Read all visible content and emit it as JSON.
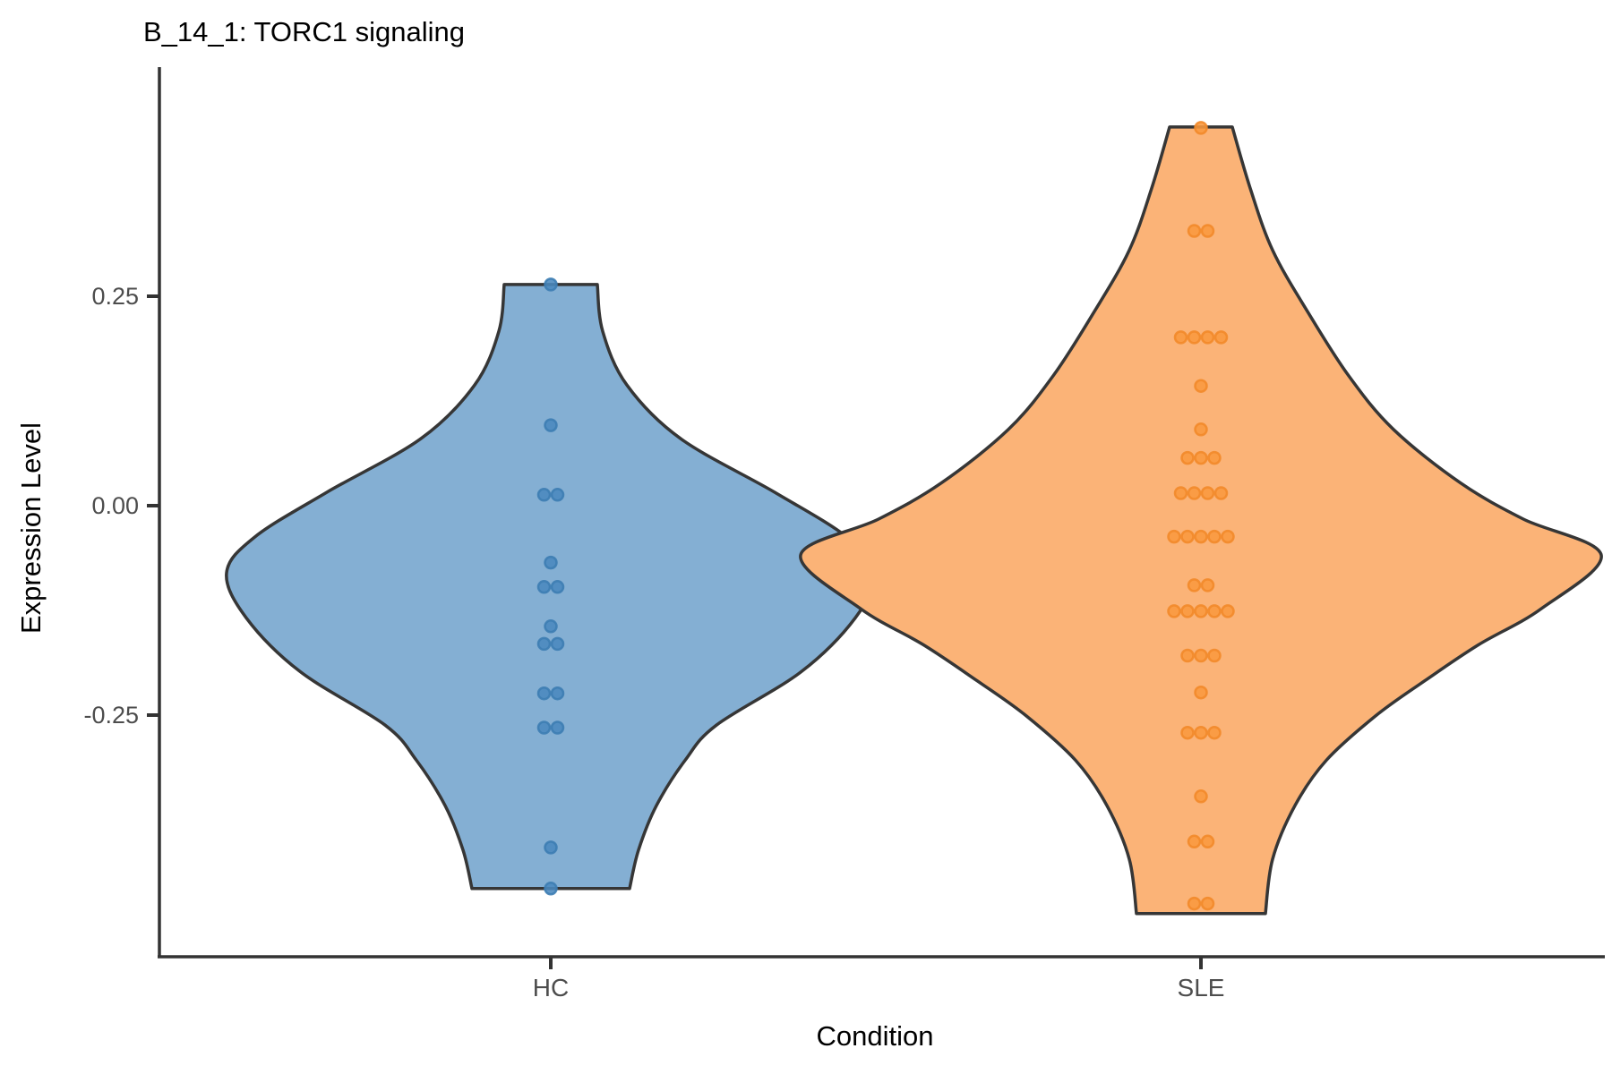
{
  "title": "B_14_1: TORC1 signaling",
  "axes": {
    "x": {
      "label": "Condition",
      "categories": [
        "HC",
        "SLE"
      ]
    },
    "y": {
      "label": "Expression Level",
      "ticks": [
        "0.25",
        "0.00",
        "-0.25"
      ],
      "tick_values": [
        0.25,
        0.0,
        -0.25
      ]
    }
  },
  "colors": {
    "violin_outline": "#363636",
    "axis_line": "#333333",
    "hc_fill": "#84AFD3",
    "hc_point_fill": "#4A89BE",
    "hc_point_stroke": "#3D7DB3",
    "sle_fill": "#FBB377",
    "sle_point_fill": "#F9993F",
    "sle_point_stroke": "#F28A2A"
  },
  "chart_data": {
    "type": "violin",
    "title": "B_14_1: TORC1 signaling",
    "xlabel": "Condition",
    "ylabel": "Expression Level",
    "ylim": [
      -0.52,
      0.49
    ],
    "grid": false,
    "legend": false,
    "groups": [
      {
        "name": "HC",
        "fill": "#84AFD3",
        "point_fill": "#4A89BE",
        "point_stroke": "#3D7DB3",
        "n_points": 16,
        "value_range": [
          -0.457,
          0.264
        ],
        "point_rows": [
          {
            "v": 0.264,
            "n": 1
          },
          {
            "v": 0.096,
            "n": 1
          },
          {
            "v": 0.013,
            "n": 2
          },
          {
            "v": -0.068,
            "n": 1
          },
          {
            "v": -0.097,
            "n": 2
          },
          {
            "v": -0.144,
            "n": 1
          },
          {
            "v": -0.165,
            "n": 2
          },
          {
            "v": -0.224,
            "n": 2
          },
          {
            "v": -0.265,
            "n": 2
          },
          {
            "v": -0.408,
            "n": 1
          },
          {
            "v": -0.457,
            "n": 1
          }
        ],
        "density_profile": [
          {
            "v": 0.264,
            "hw": 52
          },
          {
            "v": 0.208,
            "hw": 58
          },
          {
            "v": 0.144,
            "hw": 85
          },
          {
            "v": 0.08,
            "hw": 145
          },
          {
            "v": 0.016,
            "hw": 250
          },
          {
            "v": -0.037,
            "hw": 330
          },
          {
            "v": -0.08,
            "hw": 362
          },
          {
            "v": -0.134,
            "hw": 340
          },
          {
            "v": -0.198,
            "hw": 280
          },
          {
            "v": -0.262,
            "hw": 185
          },
          {
            "v": -0.304,
            "hw": 150
          },
          {
            "v": -0.358,
            "hw": 118
          },
          {
            "v": -0.411,
            "hw": 98
          },
          {
            "v": -0.457,
            "hw": 88
          }
        ]
      },
      {
        "name": "SLE",
        "fill": "#FBB377",
        "point_fill": "#F9993F",
        "point_stroke": "#F28A2A",
        "n_points": 40,
        "value_range": [
          -0.475,
          0.451
        ],
        "point_rows": [
          {
            "v": 0.451,
            "n": 1
          },
          {
            "v": 0.328,
            "n": 2
          },
          {
            "v": 0.201,
            "n": 4
          },
          {
            "v": 0.143,
            "n": 1
          },
          {
            "v": 0.091,
            "n": 1
          },
          {
            "v": 0.057,
            "n": 3
          },
          {
            "v": 0.015,
            "n": 4
          },
          {
            "v": -0.037,
            "n": 5
          },
          {
            "v": -0.095,
            "n": 2
          },
          {
            "v": -0.126,
            "n": 5
          },
          {
            "v": -0.179,
            "n": 3
          },
          {
            "v": -0.223,
            "n": 1
          },
          {
            "v": -0.271,
            "n": 3
          },
          {
            "v": -0.347,
            "n": 1
          },
          {
            "v": -0.401,
            "n": 2
          },
          {
            "v": -0.475,
            "n": 2
          }
        ],
        "density_profile": [
          {
            "v": 0.452,
            "hw": 35
          },
          {
            "v": 0.379,
            "hw": 55
          },
          {
            "v": 0.305,
            "hw": 80
          },
          {
            "v": 0.23,
            "hw": 120
          },
          {
            "v": 0.155,
            "hw": 165
          },
          {
            "v": 0.091,
            "hw": 215
          },
          {
            "v": 0.027,
            "hw": 290
          },
          {
            "v": -0.016,
            "hw": 360
          },
          {
            "v": -0.059,
            "hw": 447
          },
          {
            "v": -0.123,
            "hw": 380
          },
          {
            "v": -0.166,
            "hw": 310
          },
          {
            "v": -0.209,
            "hw": 250
          },
          {
            "v": -0.251,
            "hw": 195
          },
          {
            "v": -0.304,
            "hw": 140
          },
          {
            "v": -0.358,
            "hw": 105
          },
          {
            "v": -0.422,
            "hw": 80
          },
          {
            "v": -0.487,
            "hw": 72
          }
        ]
      }
    ]
  }
}
